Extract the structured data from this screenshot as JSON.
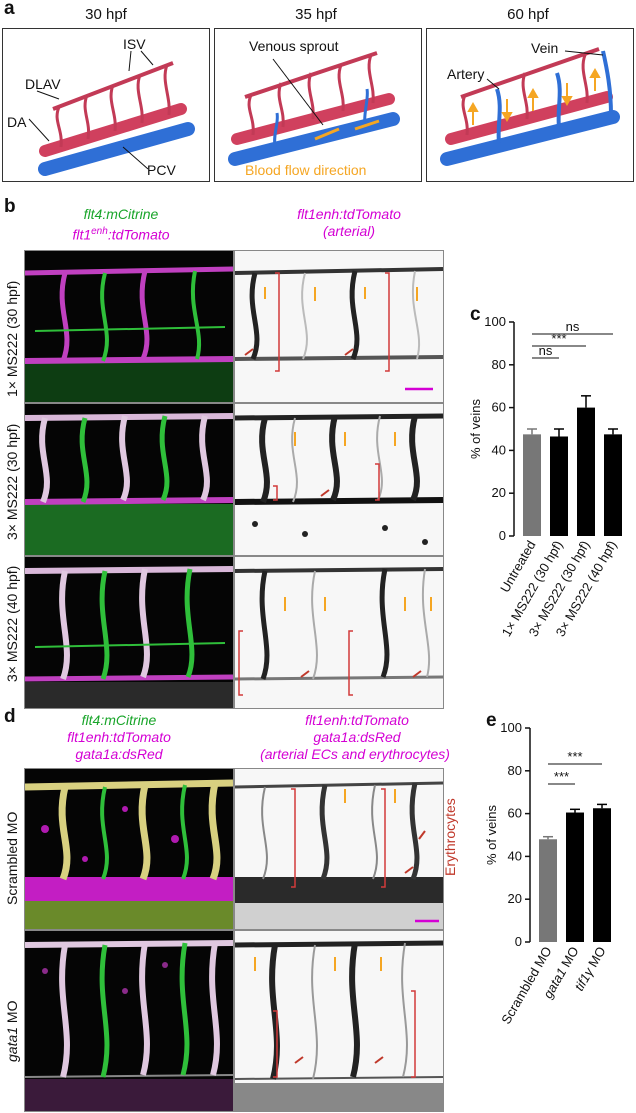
{
  "panel_a": {
    "label": "a",
    "stages": [
      "30 hpf",
      "35 hpf",
      "60 hpf"
    ],
    "labels_1": {
      "dlav": "DLAV",
      "isv": "ISV",
      "da": "DA",
      "pcv": "PCV"
    },
    "labels_2": {
      "venous_sprout": "Venous sprout",
      "flow": "Blood flow direction"
    },
    "labels_3": {
      "artery": "Artery",
      "vein": "Vein"
    },
    "colors": {
      "artery": "#d0405e",
      "vein": "#2f6fd6",
      "flow": "#f5a623"
    }
  },
  "panel_b": {
    "label": "b",
    "head_left_1": "flt4:mCitrine",
    "head_left_2_pre": "flt1",
    "head_left_2_sup": "enh",
    "head_left_2_post": ":tdTomato",
    "head_right_1": "flt1enh:tdTomato",
    "head_right_2": "(arterial)",
    "rows": [
      "1× MS222 (30 hpf)",
      "3× MS222 (30 hpf)",
      "3× MS222 (40 hpf)"
    ]
  },
  "panel_c": {
    "label": "c",
    "chart_data": {
      "type": "bar",
      "categories": [
        "Untreated",
        "1× MS222 (30 hpf)",
        "3× MS222 (30 hpf)",
        "3× MS222 (40 hpf)"
      ],
      "values": [
        47.5,
        46.5,
        60,
        47.5
      ],
      "errors": [
        2.5,
        3.5,
        5.5,
        2.5
      ],
      "colors": [
        "#777777",
        "#000000",
        "#000000",
        "#000000"
      ],
      "ylabel": "% of veins",
      "ylim": [
        0,
        100
      ],
      "yticks": [
        0,
        20,
        40,
        60,
        80,
        100
      ],
      "significance": [
        {
          "from": 0,
          "to": 1,
          "text": "ns"
        },
        {
          "from": 0,
          "to": 2,
          "text": "***"
        },
        {
          "from": 0,
          "to": 3,
          "text": "ns"
        }
      ]
    }
  },
  "panel_d": {
    "label": "d",
    "head_left": [
      "flt4:mCitrine",
      "flt1enh:tdTomato",
      "gata1a:dsRed"
    ],
    "head_right": [
      "flt1enh:tdTomato",
      "gata1a:dsRed",
      "(arterial ECs and erythrocytes)"
    ],
    "erythrocytes": "Erythrocytes",
    "rows": [
      "Scrambled MO",
      "gata1",
      " MO"
    ]
  },
  "panel_e": {
    "label": "e",
    "chart_data": {
      "type": "bar",
      "categories": [
        "Scrambled MO",
        "gata1 MO",
        "tif1γ MO"
      ],
      "values": [
        48,
        60.5,
        62.5
      ],
      "errors": [
        1.2,
        1.5,
        1.8
      ],
      "colors": [
        "#777777",
        "#000000",
        "#000000"
      ],
      "ylabel": "% of veins",
      "ylim": [
        0,
        100
      ],
      "yticks": [
        0,
        20,
        40,
        60,
        80,
        100
      ],
      "significance": [
        {
          "from": 0,
          "to": 1,
          "text": "***"
        },
        {
          "from": 0,
          "to": 2,
          "text": "***"
        }
      ]
    }
  }
}
